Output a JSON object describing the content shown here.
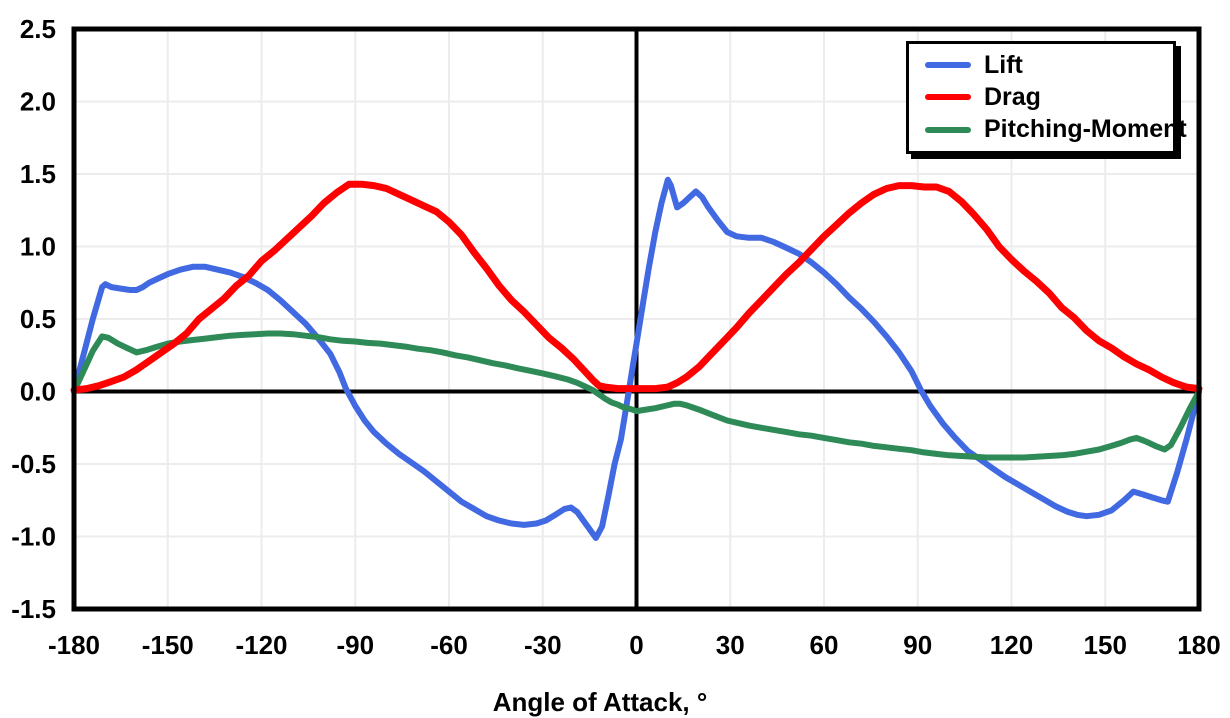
{
  "chart_data": {
    "type": "line",
    "title": "",
    "xlabel": "Angle of Attack, °",
    "ylabel": "",
    "xlim": [
      -180,
      180
    ],
    "ylim": [
      -1.5,
      2.5
    ],
    "x_ticks": [
      -180,
      -150,
      -120,
      -90,
      -60,
      -30,
      0,
      30,
      60,
      90,
      120,
      150,
      180
    ],
    "y_ticks": [
      "2.5",
      "2.0",
      "1.5",
      "1.0",
      "0.5",
      "0.0",
      "-0.5",
      "-1.0",
      "-1.5"
    ],
    "grid": true,
    "grid_color": "#ECECEC",
    "axis_color": "#000000",
    "background_color": "#FFFFFF",
    "legend": {
      "position": "top-right",
      "border_color": "#000000",
      "shadow": true
    },
    "series": [
      {
        "name": "Lift",
        "color": "#4169E1",
        "width": 6,
        "z": 1,
        "points": [
          [
            -180,
            0
          ],
          [
            -177,
            0.25
          ],
          [
            -174,
            0.5
          ],
          [
            -171,
            0.72
          ],
          [
            -170,
            0.74
          ],
          [
            -168,
            0.72
          ],
          [
            -165,
            0.71
          ],
          [
            -162,
            0.7
          ],
          [
            -160,
            0.7
          ],
          [
            -158,
            0.72
          ],
          [
            -156,
            0.75
          ],
          [
            -153,
            0.78
          ],
          [
            -150,
            0.81
          ],
          [
            -146,
            0.84
          ],
          [
            -142,
            0.86
          ],
          [
            -138,
            0.86
          ],
          [
            -134,
            0.84
          ],
          [
            -130,
            0.82
          ],
          [
            -126,
            0.79
          ],
          [
            -122,
            0.75
          ],
          [
            -118,
            0.7
          ],
          [
            -114,
            0.63
          ],
          [
            -110,
            0.55
          ],
          [
            -106,
            0.47
          ],
          [
            -102,
            0.37
          ],
          [
            -98,
            0.26
          ],
          [
            -95,
            0.13
          ],
          [
            -93,
            0.02
          ],
          [
            -90,
            -0.1
          ],
          [
            -87,
            -0.2
          ],
          [
            -84,
            -0.28
          ],
          [
            -80,
            -0.36
          ],
          [
            -76,
            -0.43
          ],
          [
            -72,
            -0.49
          ],
          [
            -68,
            -0.55
          ],
          [
            -64,
            -0.62
          ],
          [
            -60,
            -0.69
          ],
          [
            -56,
            -0.76
          ],
          [
            -52,
            -0.81
          ],
          [
            -48,
            -0.86
          ],
          [
            -44,
            -0.89
          ],
          [
            -40,
            -0.91
          ],
          [
            -36,
            -0.92
          ],
          [
            -32,
            -0.91
          ],
          [
            -29,
            -0.89
          ],
          [
            -26,
            -0.85
          ],
          [
            -23,
            -0.81
          ],
          [
            -21,
            -0.8
          ],
          [
            -19,
            -0.83
          ],
          [
            -16,
            -0.92
          ],
          [
            -13,
            -1.01
          ],
          [
            -11,
            -0.93
          ],
          [
            -9,
            -0.72
          ],
          [
            -7,
            -0.5
          ],
          [
            -5,
            -0.33
          ],
          [
            -3,
            -0.07
          ],
          [
            -1,
            0.2
          ],
          [
            0,
            0.33
          ],
          [
            2,
            0.6
          ],
          [
            4,
            0.86
          ],
          [
            6,
            1.1
          ],
          [
            8,
            1.3
          ],
          [
            10,
            1.46
          ],
          [
            11,
            1.42
          ],
          [
            13,
            1.27
          ],
          [
            15,
            1.3
          ],
          [
            17,
            1.34
          ],
          [
            19,
            1.38
          ],
          [
            21,
            1.34
          ],
          [
            23,
            1.27
          ],
          [
            26,
            1.18
          ],
          [
            29,
            1.1
          ],
          [
            32,
            1.07
          ],
          [
            36,
            1.06
          ],
          [
            40,
            1.06
          ],
          [
            44,
            1.03
          ],
          [
            48,
            0.99
          ],
          [
            52,
            0.95
          ],
          [
            56,
            0.89
          ],
          [
            60,
            0.82
          ],
          [
            64,
            0.74
          ],
          [
            68,
            0.65
          ],
          [
            72,
            0.57
          ],
          [
            76,
            0.48
          ],
          [
            80,
            0.38
          ],
          [
            84,
            0.27
          ],
          [
            88,
            0.14
          ],
          [
            91,
            0.01
          ],
          [
            94,
            -0.1
          ],
          [
            98,
            -0.22
          ],
          [
            102,
            -0.32
          ],
          [
            106,
            -0.41
          ],
          [
            110,
            -0.47
          ],
          [
            114,
            -0.53
          ],
          [
            118,
            -0.59
          ],
          [
            122,
            -0.64
          ],
          [
            126,
            -0.69
          ],
          [
            130,
            -0.74
          ],
          [
            134,
            -0.79
          ],
          [
            138,
            -0.83
          ],
          [
            141,
            -0.85
          ],
          [
            144,
            -0.86
          ],
          [
            148,
            -0.85
          ],
          [
            152,
            -0.82
          ],
          [
            156,
            -0.75
          ],
          [
            159,
            -0.69
          ],
          [
            162,
            -0.71
          ],
          [
            165,
            -0.73
          ],
          [
            168,
            -0.75
          ],
          [
            170,
            -0.76
          ],
          [
            173,
            -0.56
          ],
          [
            176,
            -0.33
          ],
          [
            180,
            0
          ]
        ]
      },
      {
        "name": "Drag",
        "color": "#FF0000",
        "width": 7,
        "z": 3,
        "points": [
          [
            -180,
            0.01
          ],
          [
            -176,
            0.02
          ],
          [
            -172,
            0.04
          ],
          [
            -168,
            0.07
          ],
          [
            -164,
            0.1
          ],
          [
            -160,
            0.15
          ],
          [
            -156,
            0.21
          ],
          [
            -152,
            0.27
          ],
          [
            -148,
            0.33
          ],
          [
            -144,
            0.4
          ],
          [
            -140,
            0.5
          ],
          [
            -136,
            0.57
          ],
          [
            -132,
            0.64
          ],
          [
            -128,
            0.73
          ],
          [
            -124,
            0.8
          ],
          [
            -120,
            0.9
          ],
          [
            -116,
            0.97
          ],
          [
            -112,
            1.05
          ],
          [
            -108,
            1.13
          ],
          [
            -104,
            1.21
          ],
          [
            -100,
            1.3
          ],
          [
            -96,
            1.37
          ],
          [
            -92,
            1.43
          ],
          [
            -88,
            1.43
          ],
          [
            -84,
            1.42
          ],
          [
            -80,
            1.4
          ],
          [
            -76,
            1.36
          ],
          [
            -72,
            1.32
          ],
          [
            -68,
            1.28
          ],
          [
            -64,
            1.24
          ],
          [
            -60,
            1.17
          ],
          [
            -56,
            1.08
          ],
          [
            -52,
            0.96
          ],
          [
            -48,
            0.85
          ],
          [
            -44,
            0.73
          ],
          [
            -40,
            0.63
          ],
          [
            -36,
            0.55
          ],
          [
            -32,
            0.46
          ],
          [
            -28,
            0.37
          ],
          [
            -24,
            0.3
          ],
          [
            -20,
            0.22
          ],
          [
            -17,
            0.15
          ],
          [
            -14,
            0.08
          ],
          [
            -12,
            0.04
          ],
          [
            -10,
            0.03
          ],
          [
            -6,
            0.02
          ],
          [
            0,
            0.02
          ],
          [
            6,
            0.02
          ],
          [
            10,
            0.03
          ],
          [
            13,
            0.06
          ],
          [
            16,
            0.1
          ],
          [
            20,
            0.17
          ],
          [
            24,
            0.26
          ],
          [
            28,
            0.35
          ],
          [
            32,
            0.44
          ],
          [
            36,
            0.54
          ],
          [
            40,
            0.63
          ],
          [
            44,
            0.72
          ],
          [
            48,
            0.81
          ],
          [
            52,
            0.89
          ],
          [
            56,
            0.98
          ],
          [
            60,
            1.07
          ],
          [
            64,
            1.15
          ],
          [
            68,
            1.23
          ],
          [
            72,
            1.3
          ],
          [
            76,
            1.36
          ],
          [
            80,
            1.4
          ],
          [
            84,
            1.42
          ],
          [
            88,
            1.42
          ],
          [
            92,
            1.41
          ],
          [
            96,
            1.41
          ],
          [
            100,
            1.38
          ],
          [
            104,
            1.31
          ],
          [
            108,
            1.22
          ],
          [
            112,
            1.12
          ],
          [
            116,
            1.0
          ],
          [
            120,
            0.91
          ],
          [
            124,
            0.83
          ],
          [
            128,
            0.76
          ],
          [
            132,
            0.68
          ],
          [
            136,
            0.58
          ],
          [
            140,
            0.51
          ],
          [
            144,
            0.42
          ],
          [
            148,
            0.35
          ],
          [
            152,
            0.3
          ],
          [
            156,
            0.24
          ],
          [
            160,
            0.19
          ],
          [
            164,
            0.15
          ],
          [
            168,
            0.1
          ],
          [
            172,
            0.06
          ],
          [
            176,
            0.03
          ],
          [
            180,
            0.02
          ]
        ]
      },
      {
        "name": "Pitching-Moment",
        "color": "#2E8B57",
        "width": 6,
        "z": 2,
        "points": [
          [
            -180,
            0
          ],
          [
            -177,
            0.14
          ],
          [
            -174,
            0.28
          ],
          [
            -171,
            0.38
          ],
          [
            -169,
            0.37
          ],
          [
            -166,
            0.33
          ],
          [
            -163,
            0.3
          ],
          [
            -160,
            0.27
          ],
          [
            -157,
            0.285
          ],
          [
            -154,
            0.305
          ],
          [
            -150,
            0.33
          ],
          [
            -146,
            0.345
          ],
          [
            -142,
            0.355
          ],
          [
            -138,
            0.365
          ],
          [
            -134,
            0.375
          ],
          [
            -130,
            0.385
          ],
          [
            -126,
            0.39
          ],
          [
            -122,
            0.395
          ],
          [
            -118,
            0.4
          ],
          [
            -114,
            0.4
          ],
          [
            -110,
            0.395
          ],
          [
            -106,
            0.385
          ],
          [
            -102,
            0.375
          ],
          [
            -98,
            0.36
          ],
          [
            -94,
            0.35
          ],
          [
            -90,
            0.345
          ],
          [
            -86,
            0.335
          ],
          [
            -82,
            0.33
          ],
          [
            -78,
            0.32
          ],
          [
            -74,
            0.31
          ],
          [
            -70,
            0.295
          ],
          [
            -66,
            0.285
          ],
          [
            -62,
            0.27
          ],
          [
            -58,
            0.25
          ],
          [
            -54,
            0.235
          ],
          [
            -50,
            0.215
          ],
          [
            -46,
            0.195
          ],
          [
            -42,
            0.18
          ],
          [
            -38,
            0.16
          ],
          [
            -34,
            0.143
          ],
          [
            -30,
            0.125
          ],
          [
            -26,
            0.105
          ],
          [
            -22,
            0.083
          ],
          [
            -19,
            0.06
          ],
          [
            -16,
            0.03
          ],
          [
            -14,
            0.01
          ],
          [
            -12,
            -0.02
          ],
          [
            -10,
            -0.05
          ],
          [
            -8,
            -0.075
          ],
          [
            -6,
            -0.09
          ],
          [
            -4,
            -0.11
          ],
          [
            -2,
            -0.12
          ],
          [
            0,
            -0.135
          ],
          [
            3,
            -0.125
          ],
          [
            6,
            -0.115
          ],
          [
            9,
            -0.1
          ],
          [
            12,
            -0.085
          ],
          [
            14,
            -0.085
          ],
          [
            16,
            -0.095
          ],
          [
            18,
            -0.11
          ],
          [
            20,
            -0.125
          ],
          [
            23,
            -0.15
          ],
          [
            26,
            -0.175
          ],
          [
            29,
            -0.2
          ],
          [
            32,
            -0.215
          ],
          [
            36,
            -0.235
          ],
          [
            40,
            -0.25
          ],
          [
            44,
            -0.265
          ],
          [
            48,
            -0.28
          ],
          [
            52,
            -0.295
          ],
          [
            56,
            -0.305
          ],
          [
            60,
            -0.32
          ],
          [
            64,
            -0.335
          ],
          [
            68,
            -0.35
          ],
          [
            72,
            -0.36
          ],
          [
            76,
            -0.375
          ],
          [
            80,
            -0.385
          ],
          [
            84,
            -0.395
          ],
          [
            88,
            -0.405
          ],
          [
            92,
            -0.42
          ],
          [
            96,
            -0.43
          ],
          [
            100,
            -0.44
          ],
          [
            104,
            -0.445
          ],
          [
            108,
            -0.45
          ],
          [
            112,
            -0.455
          ],
          [
            116,
            -0.455
          ],
          [
            120,
            -0.455
          ],
          [
            124,
            -0.455
          ],
          [
            128,
            -0.45
          ],
          [
            132,
            -0.445
          ],
          [
            136,
            -0.44
          ],
          [
            140,
            -0.43
          ],
          [
            144,
            -0.415
          ],
          [
            148,
            -0.4
          ],
          [
            152,
            -0.375
          ],
          [
            155,
            -0.355
          ],
          [
            158,
            -0.33
          ],
          [
            160,
            -0.32
          ],
          [
            163,
            -0.345
          ],
          [
            166,
            -0.375
          ],
          [
            169,
            -0.4
          ],
          [
            171,
            -0.37
          ],
          [
            174,
            -0.25
          ],
          [
            177,
            -0.12
          ],
          [
            180,
            0
          ]
        ]
      }
    ]
  }
}
